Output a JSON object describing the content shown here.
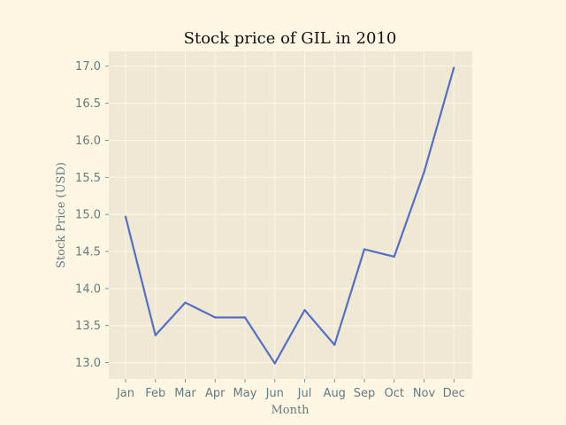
{
  "chart_data": {
    "type": "line",
    "title": "Stock price of GIL in 2010",
    "xlabel": "Month",
    "ylabel": "Stock Price (USD)",
    "categories": [
      "Jan",
      "Feb",
      "Mar",
      "Apr",
      "May",
      "Jun",
      "Jul",
      "Aug",
      "Sep",
      "Oct",
      "Nov",
      "Dec"
    ],
    "series": [
      {
        "values": [
          14.97,
          13.37,
          13.81,
          13.61,
          13.61,
          12.99,
          13.71,
          13.24,
          14.53,
          14.43,
          15.57,
          16.98
        ]
      }
    ],
    "ylim": [
      12.78,
      17.2
    ],
    "yticks": [
      "13.0",
      "13.5",
      "14.0",
      "14.5",
      "15.0",
      "15.5",
      "16.0",
      "16.5",
      "17.0"
    ],
    "grid": true,
    "colors": {
      "figure_background": "#fdf6e3",
      "axes_background": "#eee8d5",
      "grid": "#fdf6e3",
      "line": "#5470c6",
      "text": "#657b83",
      "title": "#111111"
    }
  }
}
